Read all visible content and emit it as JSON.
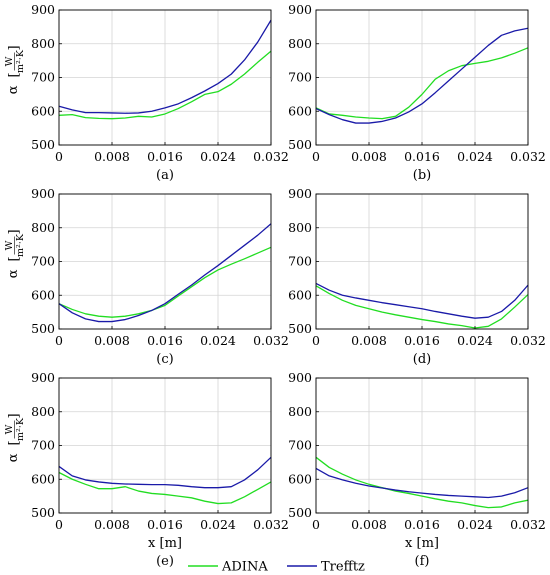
{
  "figure": {
    "colors": {
      "ADINA": "#22dd22",
      "Trefftz": "#1a1aa8"
    },
    "legend": {
      "position": "bottom-center",
      "entries": [
        "ADINA",
        "Trefftz"
      ]
    },
    "xlabel": "x [m]",
    "ylabel": {
      "symbol": "α",
      "unit_num": "W",
      "unit_den": "m²·K"
    }
  },
  "chart_data": [
    {
      "type": "line",
      "panel": "(a)",
      "xlim": [
        0,
        0.032
      ],
      "ylim": [
        500,
        900
      ],
      "grid": true,
      "xticks": [
        "0",
        "0.008",
        "0.016",
        "0.024",
        "0.032"
      ],
      "yticks": [
        "500",
        "600",
        "700",
        "800",
        "900"
      ],
      "x": [
        0,
        0.002,
        0.004,
        0.006,
        0.008,
        0.01,
        0.012,
        0.014,
        0.016,
        0.018,
        0.02,
        0.022,
        0.024,
        0.026,
        0.028,
        0.03,
        0.032
      ],
      "series": [
        {
          "name": "ADINA",
          "values": [
            588,
            590,
            581,
            579,
            578,
            580,
            585,
            583,
            592,
            608,
            628,
            650,
            658,
            680,
            710,
            745,
            778
          ]
        },
        {
          "name": "Trefftz",
          "values": [
            615,
            604,
            596,
            596,
            595,
            594,
            595,
            600,
            610,
            622,
            640,
            660,
            682,
            710,
            752,
            805,
            870
          ]
        }
      ]
    },
    {
      "type": "line",
      "panel": "(b)",
      "xlim": [
        0,
        0.032
      ],
      "ylim": [
        500,
        900
      ],
      "grid": true,
      "xticks": [
        "0",
        "0.008",
        "0.016",
        "0.024",
        "0.032"
      ],
      "yticks": [
        "500",
        "600",
        "700",
        "800",
        "900"
      ],
      "x": [
        0,
        0.002,
        0.004,
        0.006,
        0.008,
        0.01,
        0.012,
        0.014,
        0.016,
        0.018,
        0.02,
        0.022,
        0.024,
        0.026,
        0.028,
        0.03,
        0.032
      ],
      "series": [
        {
          "name": "ADINA",
          "values": [
            610,
            592,
            588,
            583,
            580,
            578,
            585,
            612,
            650,
            695,
            720,
            735,
            742,
            748,
            758,
            772,
            788
          ]
        },
        {
          "name": "Trefftz",
          "values": [
            608,
            590,
            575,
            565,
            565,
            570,
            580,
            598,
            622,
            655,
            690,
            725,
            760,
            795,
            825,
            838,
            846
          ]
        }
      ]
    },
    {
      "type": "line",
      "panel": "(c)",
      "xlim": [
        0,
        0.032
      ],
      "ylim": [
        500,
        900
      ],
      "grid": true,
      "xticks": [
        "0",
        "0.008",
        "0.016",
        "0.024",
        "0.032"
      ],
      "yticks": [
        "500",
        "600",
        "700",
        "800",
        "900"
      ],
      "x": [
        0,
        0.002,
        0.004,
        0.006,
        0.008,
        0.01,
        0.012,
        0.014,
        0.016,
        0.018,
        0.02,
        0.022,
        0.024,
        0.026,
        0.028,
        0.03,
        0.032
      ],
      "series": [
        {
          "name": "ADINA",
          "values": [
            575,
            558,
            545,
            538,
            535,
            538,
            545,
            555,
            570,
            598,
            625,
            652,
            675,
            692,
            708,
            725,
            742
          ]
        },
        {
          "name": "Trefftz",
          "values": [
            575,
            548,
            530,
            522,
            522,
            528,
            540,
            555,
            575,
            603,
            630,
            660,
            688,
            718,
            748,
            778,
            812
          ]
        }
      ]
    },
    {
      "type": "line",
      "panel": "(d)",
      "xlim": [
        0,
        0.032
      ],
      "ylim": [
        500,
        900
      ],
      "grid": true,
      "xticks": [
        "0",
        "0.008",
        "0.016",
        "0.024",
        "0.032"
      ],
      "yticks": [
        "500",
        "600",
        "700",
        "800",
        "900"
      ],
      "x": [
        0,
        0.002,
        0.004,
        0.006,
        0.008,
        0.01,
        0.012,
        0.014,
        0.016,
        0.018,
        0.02,
        0.022,
        0.024,
        0.026,
        0.028,
        0.03,
        0.032
      ],
      "series": [
        {
          "name": "ADINA",
          "values": [
            628,
            605,
            585,
            570,
            560,
            550,
            542,
            535,
            528,
            522,
            515,
            510,
            503,
            508,
            530,
            565,
            602
          ]
        },
        {
          "name": "Trefftz",
          "values": [
            635,
            615,
            600,
            592,
            585,
            578,
            572,
            566,
            560,
            552,
            545,
            538,
            532,
            535,
            552,
            585,
            630
          ]
        }
      ]
    },
    {
      "type": "line",
      "panel": "(e)",
      "xlim": [
        0,
        0.032
      ],
      "ylim": [
        500,
        900
      ],
      "grid": true,
      "xticks": [
        "0",
        "0.008",
        "0.016",
        "0.024",
        "0.032"
      ],
      "yticks": [
        "500",
        "600",
        "700",
        "800",
        "900"
      ],
      "x": [
        0,
        0.002,
        0.004,
        0.006,
        0.008,
        0.01,
        0.012,
        0.014,
        0.016,
        0.018,
        0.02,
        0.022,
        0.024,
        0.026,
        0.028,
        0.03,
        0.032
      ],
      "series": [
        {
          "name": "ADINA",
          "values": [
            620,
            600,
            585,
            572,
            572,
            578,
            565,
            558,
            555,
            550,
            545,
            535,
            528,
            530,
            548,
            570,
            592
          ]
        },
        {
          "name": "Trefftz",
          "values": [
            638,
            610,
            598,
            592,
            588,
            586,
            585,
            584,
            584,
            582,
            578,
            575,
            575,
            578,
            598,
            628,
            665
          ]
        }
      ]
    },
    {
      "type": "line",
      "panel": "(f)",
      "xlim": [
        0,
        0.032
      ],
      "ylim": [
        500,
        900
      ],
      "grid": true,
      "xticks": [
        "0",
        "0.008",
        "0.016",
        "0.024",
        "0.032"
      ],
      "yticks": [
        "500",
        "600",
        "700",
        "800",
        "900"
      ],
      "x": [
        0,
        0.002,
        0.004,
        0.006,
        0.008,
        0.01,
        0.012,
        0.014,
        0.016,
        0.018,
        0.02,
        0.022,
        0.024,
        0.026,
        0.028,
        0.03,
        0.032
      ],
      "series": [
        {
          "name": "ADINA",
          "values": [
            665,
            635,
            615,
            598,
            585,
            575,
            565,
            558,
            550,
            542,
            535,
            530,
            522,
            516,
            518,
            530,
            538
          ]
        },
        {
          "name": "Trefftz",
          "values": [
            632,
            610,
            598,
            588,
            580,
            574,
            568,
            563,
            559,
            555,
            552,
            550,
            548,
            546,
            550,
            560,
            575
          ]
        }
      ]
    }
  ]
}
